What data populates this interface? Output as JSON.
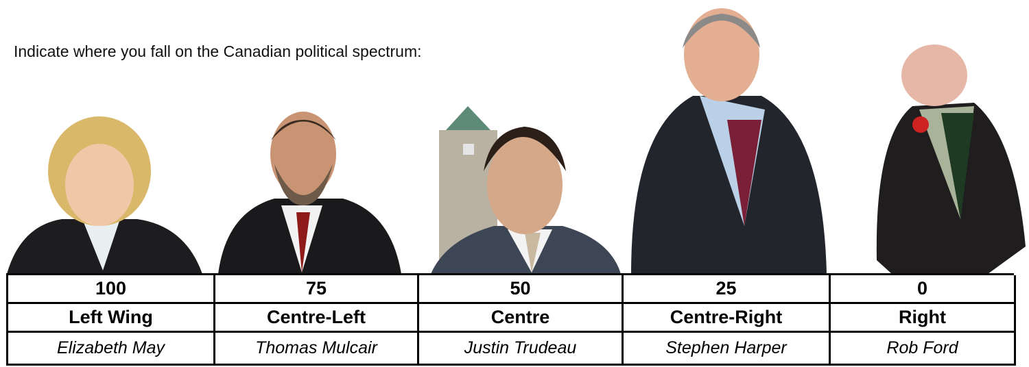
{
  "prompt": "Indicate where you fall on the Canadian political spectrum:",
  "table": {
    "columns": [
      {
        "score": 100,
        "label": "Left Wing",
        "name": "Elizabeth May"
      },
      {
        "score": 75,
        "label": "Centre-Left",
        "name": "Thomas Mulcair"
      },
      {
        "score": 50,
        "label": "Centre",
        "name": "Justin Trudeau"
      },
      {
        "score": 25,
        "label": "Centre-Right",
        "name": "Stephen Harper"
      },
      {
        "score": 0,
        "label": "Right",
        "name": "Rob Ford"
      }
    ]
  }
}
